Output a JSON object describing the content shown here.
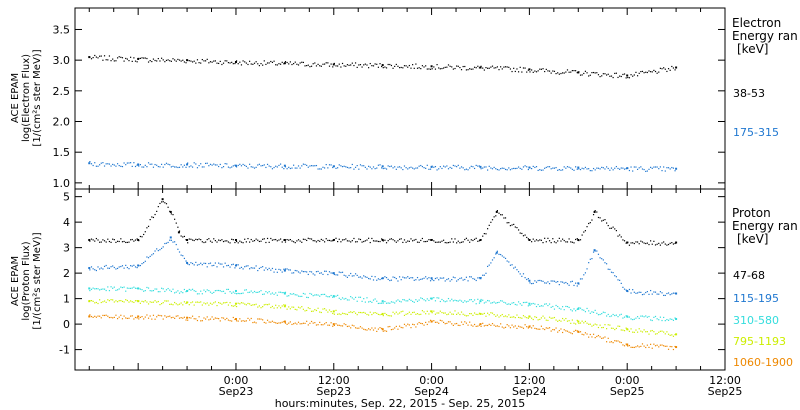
{
  "chart_data": [
    {
      "type": "scatter",
      "panel": "electron",
      "ylabel": [
        "ACE EPAM",
        "log(Electron Flux)",
        "[1/(cm²s ster MeV)]"
      ],
      "ylim": [
        0.9,
        3.85
      ],
      "yticks": [
        "1.0",
        "1.5",
        "2.0",
        "2.5",
        "3.0",
        "3.5"
      ],
      "ytick_values": [
        1.0,
        1.5,
        2.0,
        2.5,
        3.0,
        3.5
      ],
      "legend": {
        "title": [
          "Electron",
          "Energy ran",
          "[keV]"
        ],
        "placement": "right"
      },
      "series": [
        {
          "name": "38-53",
          "color": "#000000",
          "x": [
            "2015-09-22 06:00",
            "2015-09-22 12:00",
            "2015-09-22 18:00",
            "2015-09-23 00:00",
            "2015-09-23 06:00",
            "2015-09-23 12:00",
            "2015-09-23 18:00",
            "2015-09-24 00:00",
            "2015-09-24 06:00",
            "2015-09-24 12:00",
            "2015-09-24 18:00",
            "2015-09-25 00:00",
            "2015-09-25 06:00"
          ],
          "y": [
            3.05,
            3.02,
            3.0,
            2.97,
            2.95,
            2.93,
            2.92,
            2.9,
            2.88,
            2.85,
            2.8,
            2.75,
            2.88
          ]
        },
        {
          "name": "175-315",
          "color": "#1f77d0",
          "x": [
            "2015-09-22 06:00",
            "2015-09-22 12:00",
            "2015-09-22 18:00",
            "2015-09-23 00:00",
            "2015-09-23 06:00",
            "2015-09-23 12:00",
            "2015-09-23 18:00",
            "2015-09-24 00:00",
            "2015-09-24 06:00",
            "2015-09-24 12:00",
            "2015-09-24 18:00",
            "2015-09-25 00:00",
            "2015-09-25 06:00"
          ],
          "y": [
            1.32,
            1.3,
            1.3,
            1.28,
            1.28,
            1.27,
            1.27,
            1.26,
            1.26,
            1.25,
            1.25,
            1.24,
            1.23
          ]
        }
      ]
    },
    {
      "type": "scatter",
      "panel": "proton",
      "ylabel": [
        "ACE EPAM",
        "log(Proton Flux)",
        "[1/(cm²s ster MeV)]"
      ],
      "ylim": [
        -1.8,
        5.3
      ],
      "yticks": [
        "-1",
        "0",
        "1",
        "2",
        "3",
        "4",
        "5"
      ],
      "ytick_values": [
        -1,
        0,
        1,
        2,
        3,
        4,
        5
      ],
      "legend": {
        "title": [
          "Proton",
          "Energy ran",
          "[keV]"
        ],
        "placement": "right"
      },
      "series": [
        {
          "name": "47-68",
          "color": "#000000",
          "x": [
            "2015-09-22 06:00",
            "2015-09-22 12:00",
            "2015-09-22 15:00",
            "2015-09-22 16:00",
            "2015-09-22 17:00",
            "2015-09-22 18:00",
            "2015-09-23 00:00",
            "2015-09-23 06:00",
            "2015-09-23 12:00",
            "2015-09-23 18:00",
            "2015-09-24 00:00",
            "2015-09-24 06:00",
            "2015-09-24 08:00",
            "2015-09-24 12:00",
            "2015-09-24 18:00",
            "2015-09-24 20:00",
            "2015-09-25 00:00",
            "2015-09-25 06:00"
          ],
          "y": [
            3.3,
            3.3,
            4.9,
            4.4,
            3.6,
            3.3,
            3.3,
            3.3,
            3.3,
            3.3,
            3.3,
            3.3,
            4.4,
            3.3,
            3.3,
            4.4,
            3.2,
            3.2
          ]
        },
        {
          "name": "115-195",
          "color": "#1f77d0",
          "x": [
            "2015-09-22 06:00",
            "2015-09-22 12:00",
            "2015-09-22 16:00",
            "2015-09-22 18:00",
            "2015-09-23 00:00",
            "2015-09-23 06:00",
            "2015-09-23 12:00",
            "2015-09-23 18:00",
            "2015-09-24 00:00",
            "2015-09-24 06:00",
            "2015-09-24 08:00",
            "2015-09-24 12:00",
            "2015-09-24 18:00",
            "2015-09-24 20:00",
            "2015-09-25 00:00",
            "2015-09-25 06:00"
          ],
          "y": [
            2.2,
            2.3,
            3.4,
            2.4,
            2.3,
            2.1,
            2.0,
            1.8,
            1.8,
            1.8,
            2.8,
            1.7,
            1.6,
            2.9,
            1.3,
            1.2
          ]
        },
        {
          "name": "310-580",
          "color": "#33dddd",
          "x": [
            "2015-09-22 06:00",
            "2015-09-22 12:00",
            "2015-09-22 18:00",
            "2015-09-23 00:00",
            "2015-09-23 06:00",
            "2015-09-23 12:00",
            "2015-09-23 18:00",
            "2015-09-24 00:00",
            "2015-09-24 06:00",
            "2015-09-24 12:00",
            "2015-09-24 18:00",
            "2015-09-25 00:00",
            "2015-09-25 06:00"
          ],
          "y": [
            1.4,
            1.4,
            1.3,
            1.3,
            1.2,
            1.1,
            0.9,
            1.0,
            0.9,
            0.8,
            0.6,
            0.3,
            0.2
          ]
        },
        {
          "name": "795-1193",
          "color": "#ccee00",
          "x": [
            "2015-09-22 06:00",
            "2015-09-22 12:00",
            "2015-09-22 18:00",
            "2015-09-23 00:00",
            "2015-09-23 06:00",
            "2015-09-23 12:00",
            "2015-09-23 18:00",
            "2015-09-24 00:00",
            "2015-09-24 06:00",
            "2015-09-24 12:00",
            "2015-09-24 18:00",
            "2015-09-25 00:00",
            "2015-09-25 06:00"
          ],
          "y": [
            0.9,
            0.9,
            0.85,
            0.8,
            0.7,
            0.5,
            0.4,
            0.5,
            0.4,
            0.3,
            0.1,
            -0.2,
            -0.4
          ]
        },
        {
          "name": "1060-1900",
          "color": "#ee8800",
          "x": [
            "2015-09-22 06:00",
            "2015-09-22 12:00",
            "2015-09-22 18:00",
            "2015-09-23 00:00",
            "2015-09-23 06:00",
            "2015-09-23 12:00",
            "2015-09-23 18:00",
            "2015-09-24 00:00",
            "2015-09-24 06:00",
            "2015-09-24 12:00",
            "2015-09-24 18:00",
            "2015-09-25 00:00",
            "2015-09-25 06:00"
          ],
          "y": [
            0.3,
            0.3,
            0.25,
            0.2,
            0.1,
            0.0,
            -0.2,
            0.1,
            0.0,
            -0.1,
            -0.3,
            -0.8,
            -0.9
          ]
        }
      ]
    }
  ],
  "xaxis": {
    "xlabel": "hours:minutes, Sep. 22, 2015 - Sep. 25, 2015",
    "xlim": [
      "2015-09-22 04:15",
      "2015-09-25 12:00"
    ],
    "ticks": [
      {
        "t": "2015-09-23 00:00",
        "top": "0:00",
        "bottom": "Sep23"
      },
      {
        "t": "2015-09-23 12:00",
        "top": "12:00",
        "bottom": "Sep23"
      },
      {
        "t": "2015-09-24 00:00",
        "top": "0:00",
        "bottom": "Sep24"
      },
      {
        "t": "2015-09-24 12:00",
        "top": "12:00",
        "bottom": "Sep24"
      },
      {
        "t": "2015-09-25 00:00",
        "top": "0:00",
        "bottom": "Sep25"
      },
      {
        "t": "2015-09-25 12:00",
        "top": "12:00",
        "bottom": "Sep25"
      }
    ]
  }
}
